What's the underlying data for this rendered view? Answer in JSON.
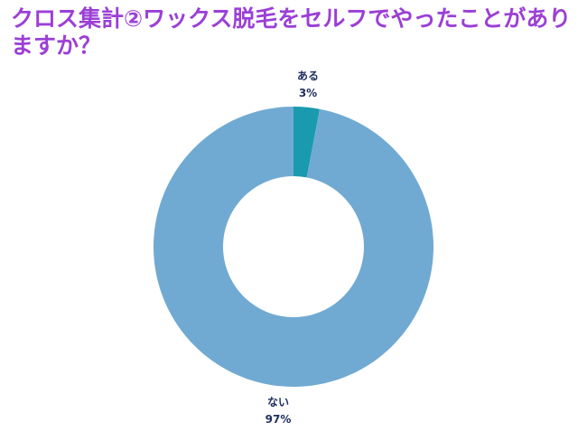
{
  "chart_data": {
    "type": "pie",
    "title": "クロス集計②ワックス脱毛をセルフでやったことがありますか？",
    "style": "donut",
    "slices": [
      {
        "label": "ある",
        "value": 3,
        "display": "3%",
        "color": "#1a9aaf"
      },
      {
        "label": "ない",
        "value": 97,
        "display": "97%",
        "color": "#70aad2"
      }
    ]
  }
}
